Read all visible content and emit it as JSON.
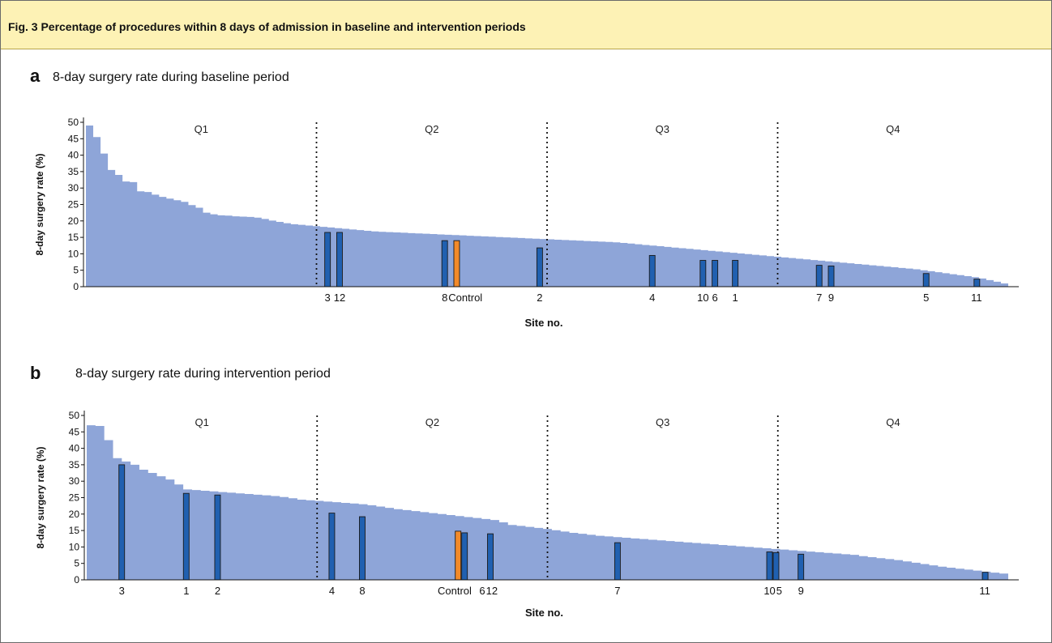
{
  "figure": {
    "title": "Fig. 3 Percentage of procedures within 8 days of admission in baseline and intervention periods"
  },
  "colors": {
    "header_bg": "#fdf2b5",
    "area": "#8ea5d8",
    "site_bar": "#2060b0",
    "control_bar": "#f28a2a",
    "bar_edge": "#1a1a1a"
  },
  "chart_data": [
    {
      "type": "bar",
      "panel": "a",
      "title": "8-day surgery rate during baseline period",
      "xlabel": "Site no.",
      "ylabel": "8-day surgery rate (%)",
      "ylim": [
        0,
        50
      ],
      "yticks": [
        0,
        5,
        10,
        15,
        20,
        25,
        30,
        35,
        40,
        45,
        50
      ],
      "quartile_labels": [
        "Q1",
        "Q2",
        "Q3",
        "Q4"
      ],
      "background_profile": {
        "description": "sorted surgery rates of all hospitals (descending)",
        "values": [
          49,
          45.5,
          40.5,
          35.5,
          34,
          32,
          31.8,
          29,
          28.8,
          28,
          27.3,
          26.8,
          26.3,
          25.8,
          24.8,
          24,
          22.5,
          22,
          21.7,
          21.6,
          21.4,
          21.3,
          21.2,
          21,
          20.6,
          20.1,
          19.7,
          19.3,
          19,
          18.8,
          18.6,
          18.4,
          18.2,
          18,
          17.8,
          17.6,
          17.4,
          17.2,
          17,
          16.8,
          16.7,
          16.6,
          16.5,
          16.4,
          16.3,
          16.2,
          16.1,
          16.0,
          15.9,
          15.8,
          15.7,
          15.6,
          15.5,
          15.4,
          15.3,
          15.2,
          15.1,
          15.0,
          14.9,
          14.8,
          14.7,
          14.6,
          14.5,
          14.4,
          14.3,
          14.2,
          14.1,
          14.0,
          13.9,
          13.8,
          13.7,
          13.6,
          13.5,
          13.3,
          13.1,
          12.9,
          12.7,
          12.5,
          12.3,
          12.1,
          11.9,
          11.7,
          11.5,
          11.3,
          11.1,
          10.9,
          10.7,
          10.5,
          10.3,
          10.1,
          9.9,
          9.7,
          9.5,
          9.3,
          9.1,
          8.9,
          8.7,
          8.5,
          8.3,
          8.1,
          7.9,
          7.7,
          7.5,
          7.3,
          7.1,
          6.9,
          6.7,
          6.5,
          6.3,
          6.1,
          5.9,
          5.7,
          5.5,
          5.3,
          5.0,
          4.7,
          4.4,
          4.1,
          3.8,
          3.5,
          3.2,
          2.9,
          2.5,
          2.0,
          1.5,
          1.0
        ]
      },
      "quartile_cutoffs_fraction": [
        0.25,
        0.5,
        0.75
      ],
      "sites": [
        {
          "label": "3",
          "value": 16.5,
          "rank_fraction": 0.262,
          "control": false
        },
        {
          "label": "12",
          "value": 16.5,
          "rank_fraction": 0.275,
          "control": false
        },
        {
          "label": "8",
          "value": 14.0,
          "rank_fraction": 0.389,
          "control": false
        },
        {
          "label": "Control",
          "value": 14.0,
          "rank_fraction": 0.402,
          "control": true
        },
        {
          "label": "2",
          "value": 11.8,
          "rank_fraction": 0.492,
          "control": false
        },
        {
          "label": "4",
          "value": 9.5,
          "rank_fraction": 0.614,
          "control": false
        },
        {
          "label": "10",
          "value": 8.0,
          "rank_fraction": 0.669,
          "control": false
        },
        {
          "label": "6",
          "value": 8.0,
          "rank_fraction": 0.682,
          "control": false
        },
        {
          "label": "1",
          "value": 8.0,
          "rank_fraction": 0.704,
          "control": false
        },
        {
          "label": "7",
          "value": 6.5,
          "rank_fraction": 0.795,
          "control": false
        },
        {
          "label": "9",
          "value": 6.3,
          "rank_fraction": 0.808,
          "control": false
        },
        {
          "label": "5",
          "value": 4.0,
          "rank_fraction": 0.911,
          "control": false
        },
        {
          "label": "11",
          "value": 2.3,
          "rank_fraction": 0.966,
          "control": false
        }
      ]
    },
    {
      "type": "bar",
      "panel": "b",
      "title": "8-day surgery rate during intervention period",
      "xlabel": "Site no.",
      "ylabel": "8-day surgery rate (%)",
      "ylim": [
        0,
        50
      ],
      "yticks": [
        0,
        5,
        10,
        15,
        20,
        25,
        30,
        35,
        40,
        45,
        50
      ],
      "quartile_labels": [
        "Q1",
        "Q2",
        "Q3",
        "Q4"
      ],
      "background_profile": {
        "description": "sorted surgery rates of all hospitals (descending)",
        "values": [
          47,
          46.8,
          42.5,
          37,
          36,
          35,
          33.5,
          32.5,
          31.5,
          30.5,
          29,
          27.5,
          27.3,
          27.1,
          26.9,
          26.7,
          26.5,
          26.3,
          26.1,
          25.9,
          25.7,
          25.5,
          25.2,
          24.8,
          24.4,
          24.2,
          24.0,
          23.8,
          23.6,
          23.4,
          23.2,
          23.0,
          22.7,
          22.3,
          21.9,
          21.5,
          21.2,
          20.9,
          20.6,
          20.3,
          20.0,
          19.7,
          19.4,
          19.1,
          18.8,
          18.5,
          18.2,
          17.5,
          16.7,
          16.4,
          16.1,
          15.8,
          15.5,
          15.1,
          14.7,
          14.3,
          14.0,
          13.7,
          13.4,
          13.2,
          13.0,
          12.8,
          12.6,
          12.4,
          12.2,
          12.0,
          11.8,
          11.6,
          11.4,
          11.2,
          11.0,
          10.8,
          10.6,
          10.4,
          10.2,
          10.0,
          9.8,
          9.6,
          9.4,
          9.2,
          9.0,
          8.8,
          8.6,
          8.4,
          8.2,
          8.0,
          7.8,
          7.6,
          7.2,
          6.9,
          6.6,
          6.3,
          6.0,
          5.6,
          5.2,
          4.8,
          4.4,
          4.0,
          3.7,
          3.4,
          3.1,
          2.8,
          2.5,
          2.2,
          1.9
        ]
      },
      "quartile_cutoffs_fraction": [
        0.25,
        0.5,
        0.75
      ],
      "sites": [
        {
          "label": "3",
          "value": 35.0,
          "rank_fraction": 0.038,
          "control": false
        },
        {
          "label": "1",
          "value": 26.3,
          "rank_fraction": 0.108,
          "control": false
        },
        {
          "label": "2",
          "value": 25.8,
          "rank_fraction": 0.142,
          "control": false
        },
        {
          "label": "4",
          "value": 20.3,
          "rank_fraction": 0.266,
          "control": false
        },
        {
          "label": "8",
          "value": 19.2,
          "rank_fraction": 0.299,
          "control": false
        },
        {
          "label": "Control",
          "value": 14.8,
          "rank_fraction": 0.403,
          "control": true
        },
        {
          "label": "6",
          "value": 14.3,
          "rank_fraction": 0.41,
          "control": false
        },
        {
          "label": "12",
          "value": 14.0,
          "rank_fraction": 0.438,
          "control": false
        },
        {
          "label": "7",
          "value": 11.3,
          "rank_fraction": 0.576,
          "control": false
        },
        {
          "label": "10",
          "value": 8.5,
          "rank_fraction": 0.741,
          "control": false
        },
        {
          "label": "5",
          "value": 8.3,
          "rank_fraction": 0.748,
          "control": false
        },
        {
          "label": "9",
          "value": 7.8,
          "rank_fraction": 0.775,
          "control": false
        },
        {
          "label": "11",
          "value": 2.3,
          "rank_fraction": 0.975,
          "control": false
        }
      ]
    }
  ]
}
